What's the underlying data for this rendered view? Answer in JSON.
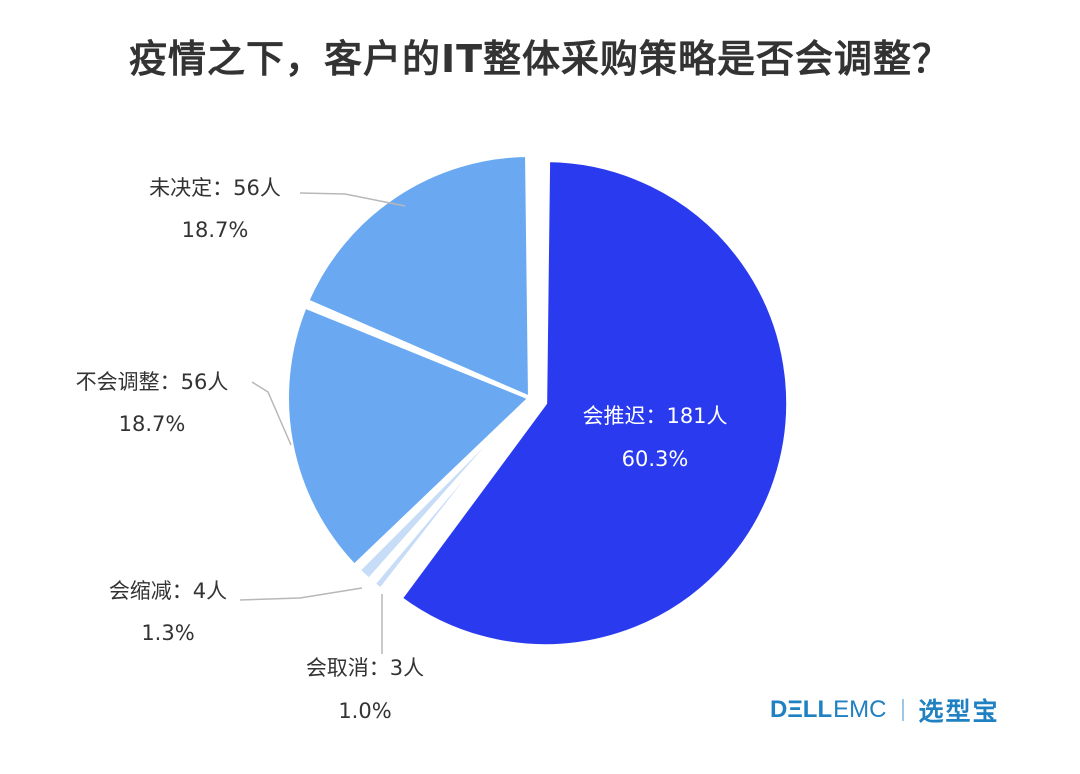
{
  "title": "疫情之下，客户的IT整体采购策略是否会调整？",
  "colors": {
    "primary": "#2a3bef",
    "light_blue": "#6aa9f2",
    "pale_blue": "#c6dcf7",
    "text": "#333333"
  },
  "chart_data": {
    "type": "pie",
    "title": "疫情之下，客户的IT整体采购策略是否会调整？",
    "slices": [
      {
        "label": "会推迟",
        "count": "181人",
        "value": 181,
        "percent": "60.3%",
        "color": "#2a3bef",
        "exploded": true
      },
      {
        "label": "会取消",
        "count": "3人",
        "value": 3,
        "percent": "1.0%",
        "color": "#c6dcf7"
      },
      {
        "label": "会缩减",
        "count": "4人",
        "value": 4,
        "percent": "1.3%",
        "color": "#c6dcf7"
      },
      {
        "label": "不会调整",
        "count": "56人",
        "value": 56,
        "percent": "18.7%",
        "color": "#6aa9f2"
      },
      {
        "label": "未决定",
        "count": "56人",
        "value": 56,
        "percent": "18.7%",
        "color": "#6aa9f2"
      }
    ],
    "start_angle": "12 o'clock, clockwise",
    "legend": "none (direct labels)"
  },
  "branding": {
    "dell": "DΞLL",
    "emc": "EMC",
    "cn": "选型宝"
  }
}
